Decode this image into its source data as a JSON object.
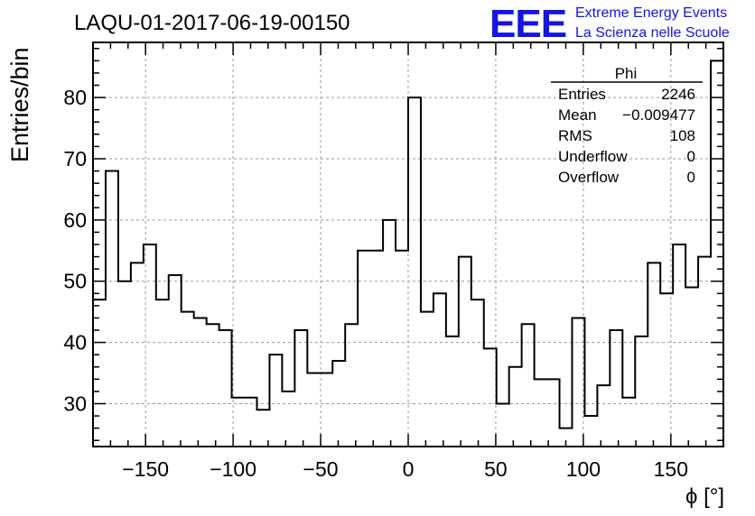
{
  "title": "LAQU-01-2017-06-19-00150",
  "logo": {
    "mark": "EEE",
    "line1": "Extreme Energy Events",
    "line2": "La Scienza nelle Scuole",
    "color": "#1414e6"
  },
  "stats": {
    "name": "Phi",
    "rows": [
      {
        "label": "Entries",
        "value": "2246"
      },
      {
        "label": "Mean",
        "value": "−0.009477"
      },
      {
        "label": "RMS",
        "value": "108"
      },
      {
        "label": "Underflow",
        "value": "0"
      },
      {
        "label": "Overflow",
        "value": "0"
      }
    ]
  },
  "chart_data": {
    "type": "bar",
    "style": "step-histogram",
    "title": "LAQU-01-2017-06-19-00150",
    "xlabel": "ϕ [°]",
    "ylabel": "Entries/bin",
    "xlim": [
      -180,
      180
    ],
    "ylim": [
      23,
      89
    ],
    "bin_width": 7.2,
    "xticks": [
      -150,
      -100,
      -50,
      0,
      50,
      100,
      150
    ],
    "yticks": [
      30,
      40,
      50,
      60,
      70,
      80
    ],
    "grid": true,
    "values": [
      47,
      68,
      50,
      53,
      56,
      47,
      51,
      45,
      44,
      43,
      42,
      31,
      31,
      29,
      38,
      32,
      42,
      35,
      35,
      37,
      43,
      55,
      55,
      60,
      55,
      80,
      45,
      48,
      41,
      54,
      47,
      39,
      30,
      36,
      43,
      34,
      34,
      26,
      44,
      28,
      33,
      42,
      31,
      41,
      53,
      48,
      56,
      49,
      54,
      86
    ]
  }
}
